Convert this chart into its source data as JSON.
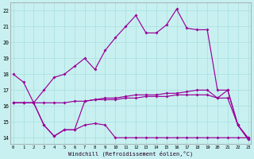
{
  "background_color": "#c8f0f0",
  "grid_color": "#a8dede",
  "line_color": "#990099",
  "x_ticks": [
    0,
    1,
    2,
    3,
    4,
    5,
    6,
    7,
    8,
    9,
    10,
    11,
    12,
    13,
    14,
    15,
    16,
    17,
    18,
    19,
    20,
    21,
    22,
    23
  ],
  "y_ticks": [
    14,
    15,
    16,
    17,
    18,
    19,
    20,
    21,
    22
  ],
  "ylim": [
    13.6,
    22.5
  ],
  "xlim": [
    -0.3,
    23.3
  ],
  "xlabel": "Windchill (Refroidissement éolien,°C)",
  "line1": [
    18.0,
    17.5,
    16.2,
    17.0,
    17.8,
    18.0,
    18.5,
    19.0,
    18.3,
    19.5,
    20.3,
    21.0,
    21.7,
    20.6,
    20.6,
    21.1,
    22.1,
    20.9,
    20.8,
    20.8,
    17.0,
    17.0,
    14.8,
    13.9
  ],
  "line2": [
    16.2,
    16.2,
    16.2,
    16.2,
    16.2,
    16.2,
    16.3,
    16.3,
    16.4,
    16.5,
    16.5,
    16.6,
    16.7,
    16.7,
    16.7,
    16.8,
    16.8,
    16.9,
    17.0,
    17.0,
    16.5,
    16.5,
    14.8,
    14.0
  ],
  "line3": [
    16.2,
    16.2,
    16.2,
    14.8,
    14.1,
    14.5,
    14.5,
    16.3,
    16.4,
    16.4,
    16.4,
    16.5,
    16.5,
    16.6,
    16.6,
    16.6,
    16.7,
    16.7,
    16.7,
    16.7,
    16.5,
    17.0,
    14.8,
    13.9
  ],
  "line4": [
    16.2,
    16.2,
    16.2,
    14.8,
    14.1,
    14.5,
    14.5,
    14.8,
    14.9,
    14.8,
    14.0,
    14.0,
    14.0,
    14.0,
    14.0,
    14.0,
    14.0,
    14.0,
    14.0,
    14.0,
    14.0,
    14.0,
    14.0,
    14.0
  ]
}
